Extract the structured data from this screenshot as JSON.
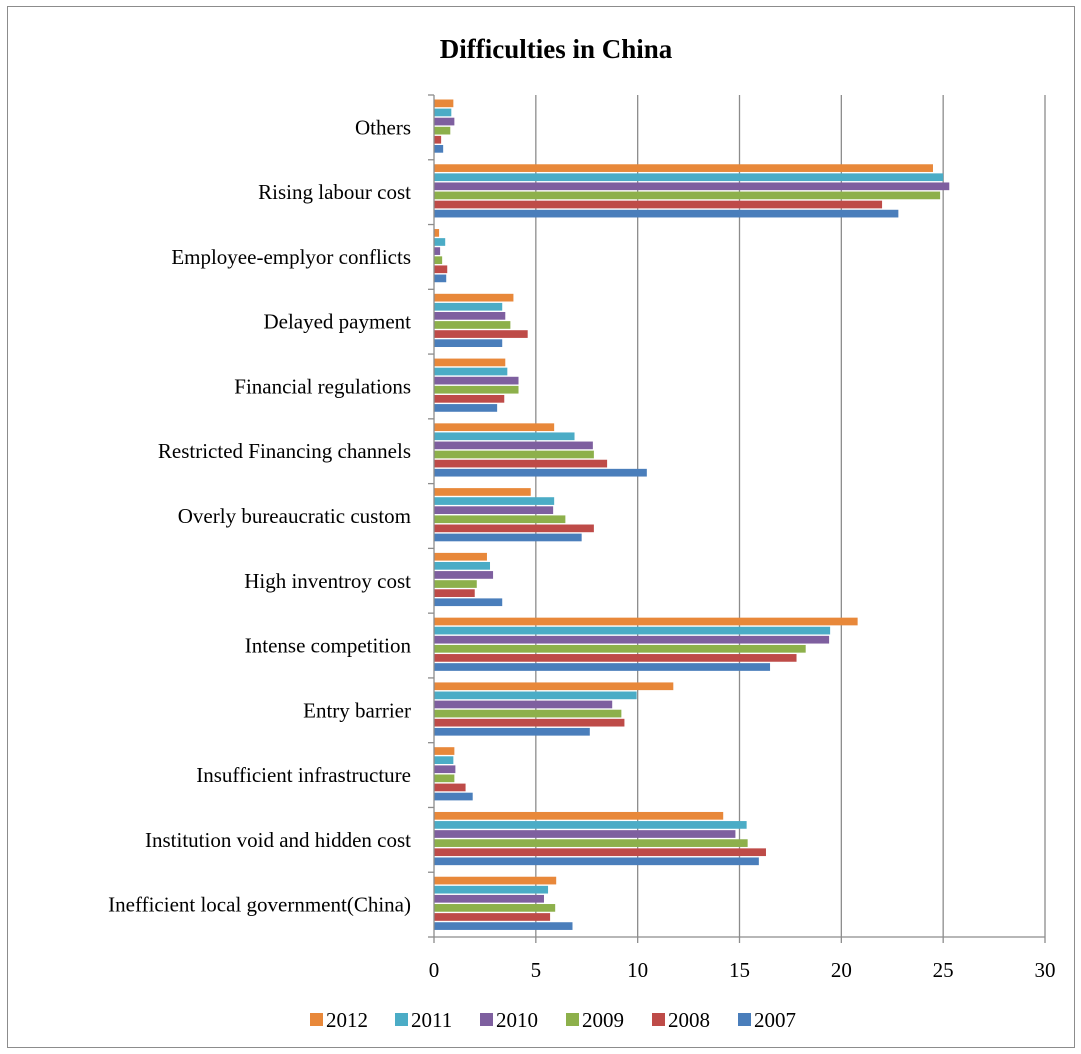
{
  "chart_data": {
    "type": "bar",
    "orientation": "horizontal",
    "title": "Difficulties in China",
    "xlabel": "",
    "ylabel": "",
    "xlim": [
      0,
      30
    ],
    "ticks": [
      "0",
      "5",
      "10",
      "15",
      "20",
      "25",
      "30"
    ],
    "grid": true,
    "legend_position": "bottom",
    "categories": [
      "Others",
      "Rising labour cost",
      "Employee-emplyor conflicts",
      "Delayed payment",
      "Financial regulations",
      "Restricted Financing channels",
      "Overly bureaucratic custom",
      "High inventroy cost",
      "Intense competition",
      "Entry barrier",
      "Insufficient infrastructure",
      "Institution void and hidden cost",
      "Inefficient local government(China)"
    ],
    "series": [
      {
        "name": "2012",
        "color": "#E8883A",
        "values": [
          0.95,
          24.5,
          0.25,
          3.9,
          3.5,
          5.9,
          4.75,
          2.6,
          20.8,
          11.75,
          1.0,
          14.2,
          6.0
        ]
      },
      {
        "name": "2011",
        "color": "#4BACC6",
        "values": [
          0.85,
          25.0,
          0.55,
          3.35,
          3.6,
          6.9,
          5.9,
          2.75,
          19.45,
          9.95,
          0.95,
          15.35,
          5.6
        ]
      },
      {
        "name": "2010",
        "color": "#7E5F9F",
        "values": [
          1.0,
          25.3,
          0.3,
          3.5,
          4.15,
          7.8,
          5.85,
          2.9,
          19.4,
          8.75,
          1.05,
          14.8,
          5.4
        ]
      },
      {
        "name": "2009",
        "color": "#8DB04B",
        "values": [
          0.8,
          24.85,
          0.4,
          3.75,
          4.15,
          7.85,
          6.45,
          2.1,
          18.25,
          9.2,
          1.0,
          15.4,
          5.95
        ]
      },
      {
        "name": "2008",
        "color": "#BE4B48",
        "values": [
          0.35,
          22.0,
          0.65,
          4.6,
          3.45,
          8.5,
          7.85,
          2.0,
          17.8,
          9.35,
          1.55,
          16.3,
          5.7
        ]
      },
      {
        "name": "2007",
        "color": "#4A7EBB",
        "values": [
          0.45,
          22.8,
          0.6,
          3.35,
          3.1,
          10.45,
          7.25,
          3.35,
          16.5,
          7.65,
          1.9,
          15.95,
          6.8
        ]
      }
    ],
    "legend_order": [
      "2012",
      "2011",
      "2010",
      "2009",
      "2008",
      "2007"
    ]
  }
}
